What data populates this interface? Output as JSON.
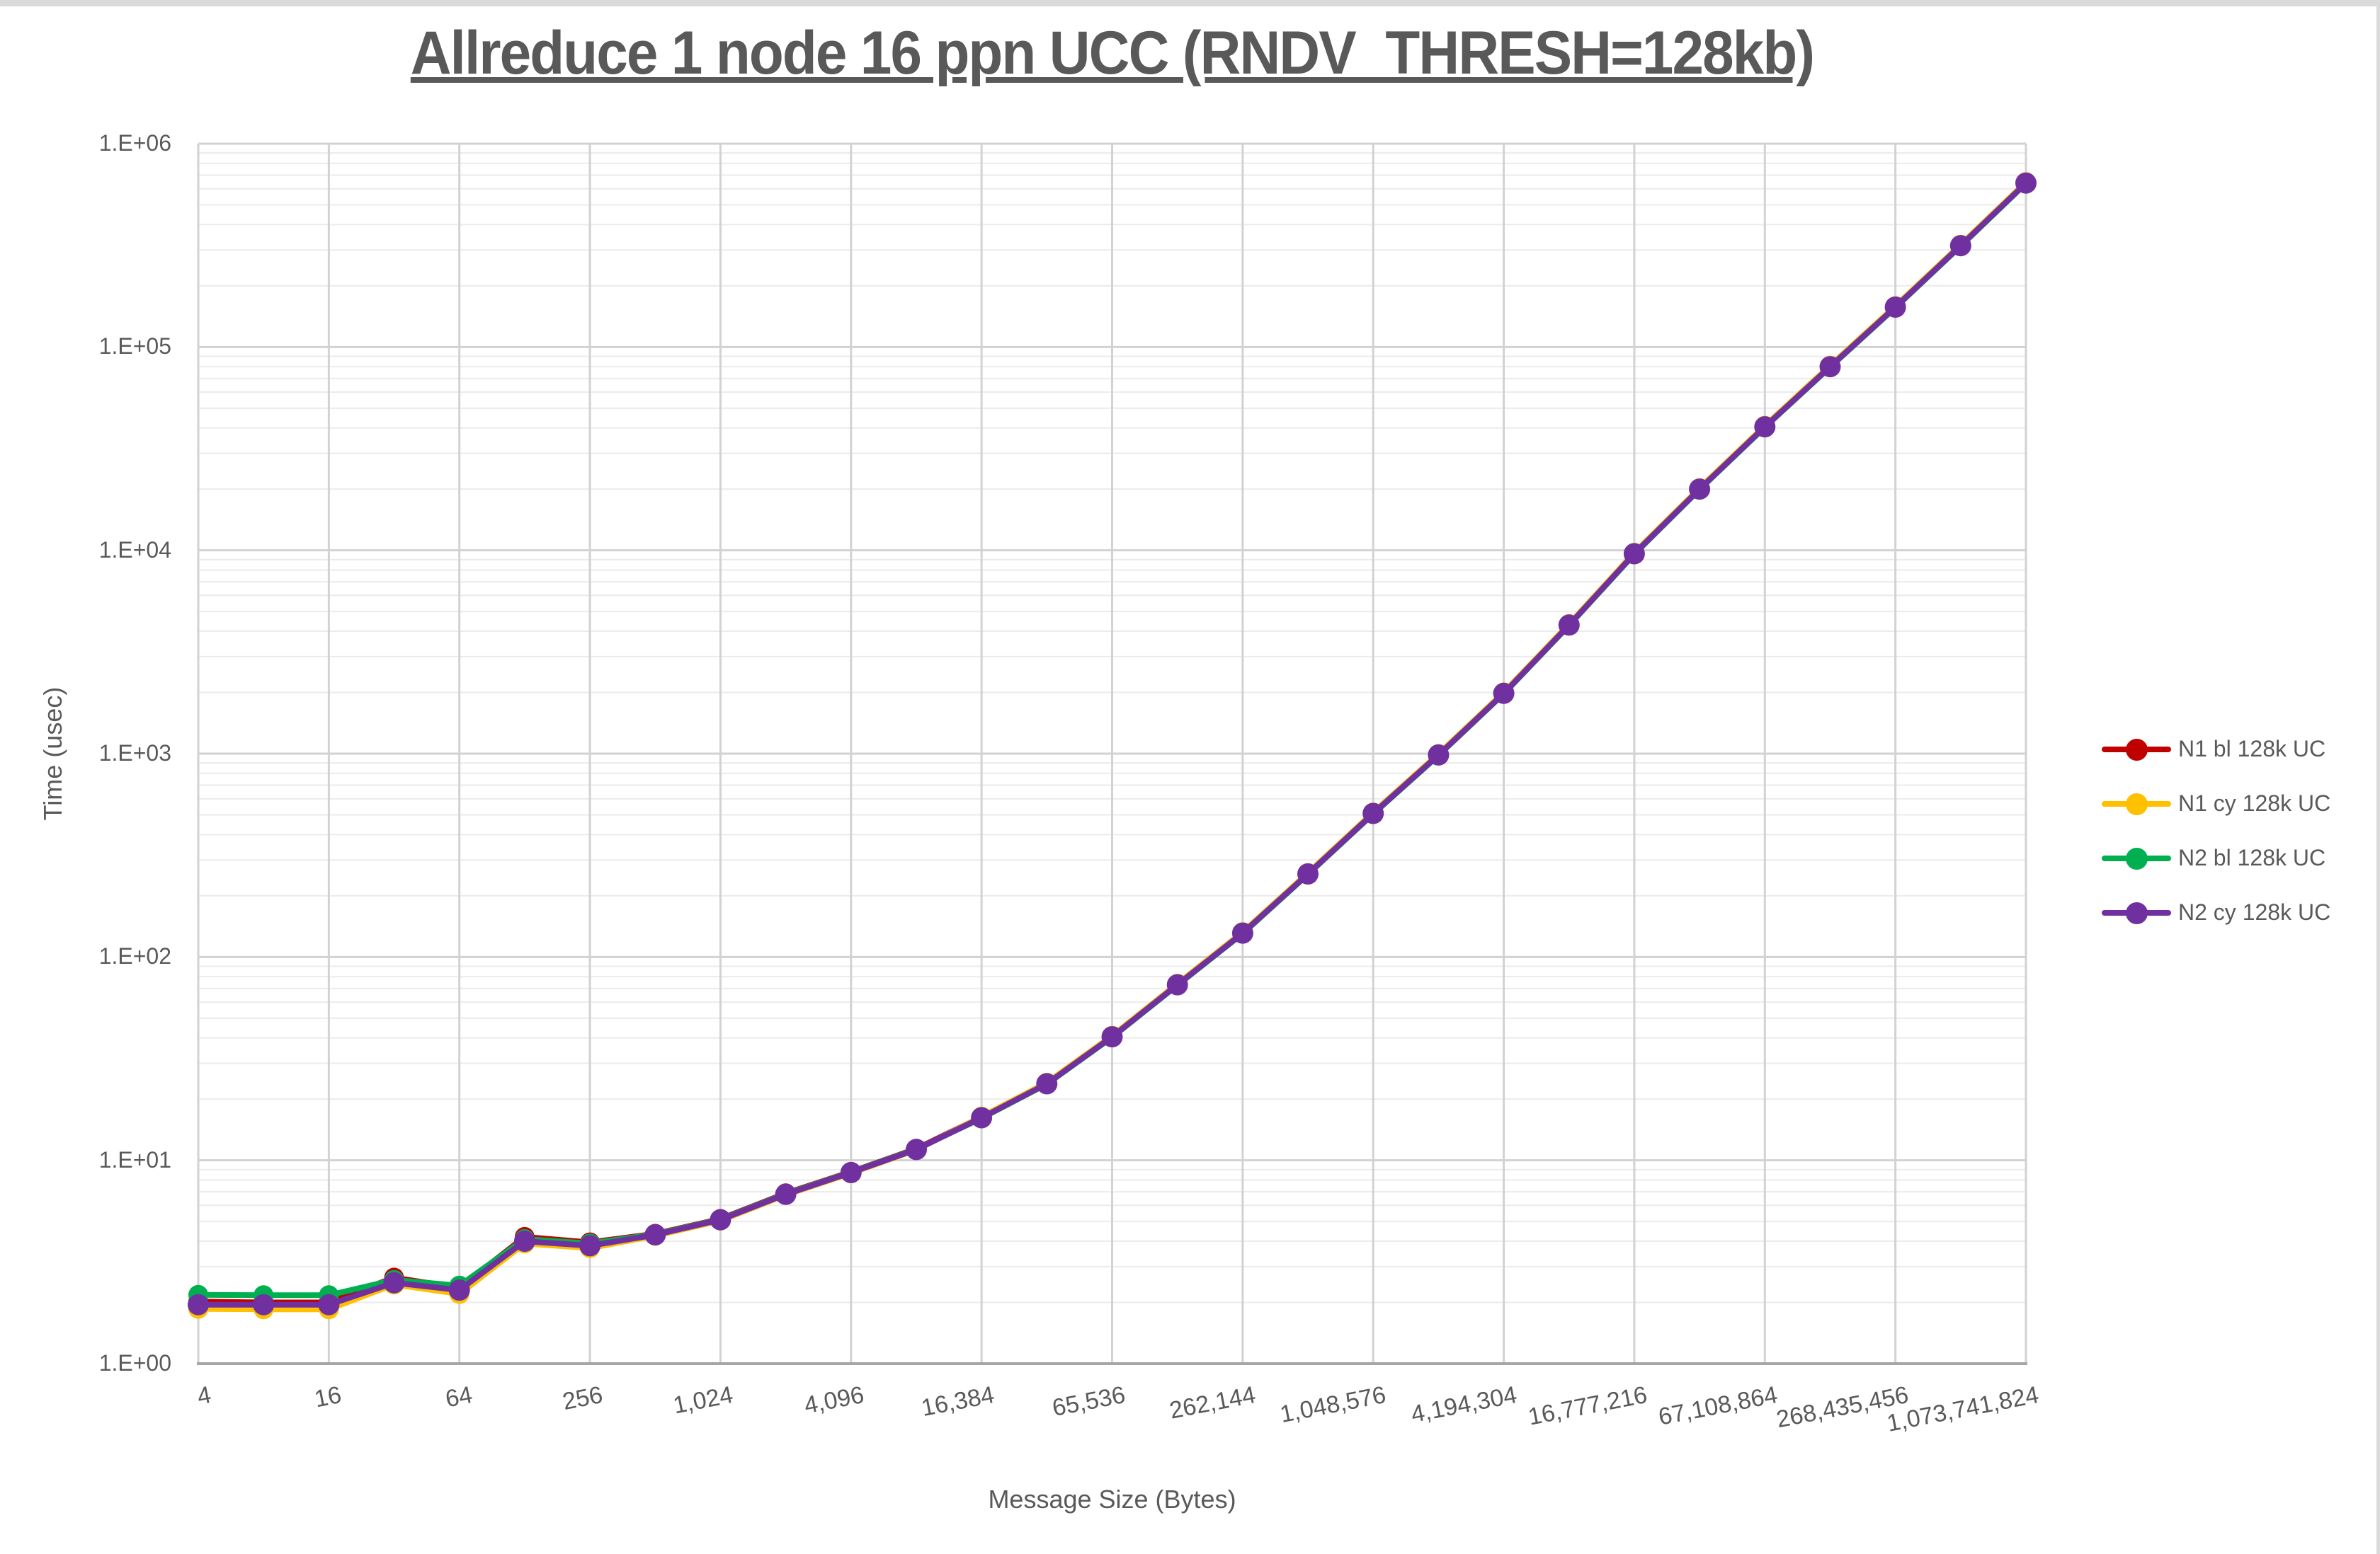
{
  "chart_data": {
    "type": "line",
    "title": "Allreduce 1 node 16 ppn UCC (RNDV_THRESH=128kb)",
    "xlabel": "Message Size (Bytes)",
    "ylabel": "Time (usec)",
    "x_scale": "log2",
    "y_scale": "log10",
    "ylim": [
      1,
      1000000
    ],
    "xlim": [
      4,
      1073741824
    ],
    "grid": {
      "major": true,
      "minor_horizontal": true,
      "minor_vertical": false
    },
    "legend_position": "right",
    "x": [
      4,
      8,
      16,
      32,
      64,
      128,
      256,
      512,
      1024,
      2048,
      4096,
      8192,
      16384,
      32768,
      65536,
      131072,
      262144,
      524288,
      1048576,
      2097152,
      4194304,
      8388608,
      16777216,
      33554432,
      67108864,
      134217728,
      268435456,
      536870912,
      1073741824
    ],
    "x_tick_values": [
      4,
      16,
      64,
      256,
      1024,
      4096,
      16384,
      65536,
      262144,
      1048576,
      4194304,
      16777216,
      67108864,
      268435456,
      1073741824
    ],
    "x_tick_labels": [
      "4",
      "16",
      "64",
      "256",
      "1,024",
      "4,096",
      "16,384",
      "65,536",
      "262,144",
      "1,048,576",
      "4,194,304",
      "16,777,216",
      "67,108,864",
      "268,435,456",
      "1,073,741,824"
    ],
    "y_tick_values": [
      1,
      10,
      100,
      1000,
      10000,
      100000,
      1000000
    ],
    "y_tick_labels": [
      "1.E+00",
      "1.E+01",
      "1.E+02",
      "1.E+03",
      "1.E+04",
      "1.E+05",
      "1.E+06"
    ],
    "series": [
      {
        "name": "N1 bl 128k UC",
        "color": "#C00000",
        "values": [
          2.02,
          2.0,
          2.0,
          2.65,
          2.36,
          4.2,
          3.95,
          4.35,
          5.15,
          6.88,
          8.78,
          11.4,
          16.35,
          23.95,
          40.7,
          73.4,
          131.7,
          257.5,
          511,
          990,
          1990,
          4310,
          9670,
          20100,
          40700,
          80400,
          157800,
          316600,
          643000
        ]
      },
      {
        "name": "N1 cy 128k UC",
        "color": "#FFC000",
        "values": [
          1.86,
          1.85,
          1.85,
          2.45,
          2.2,
          3.9,
          3.7,
          4.25,
          5.05,
          6.75,
          8.65,
          11.25,
          16.4,
          24.1,
          41.0,
          73.9,
          132.6,
          259,
          514,
          997,
          2004,
          4340,
          9740,
          20240,
          41000,
          81000,
          158900,
          318800,
          647700
        ]
      },
      {
        "name": "N2 bl 128k UC",
        "color": "#00B050",
        "values": [
          2.18,
          2.17,
          2.17,
          2.58,
          2.42,
          4.1,
          3.9,
          4.33,
          5.12,
          6.84,
          8.74,
          11.35,
          16.1,
          23.7,
          40.3,
          72.6,
          130.3,
          254.7,
          505,
          980,
          1970,
          4270,
          9570,
          19900,
          40300,
          79600,
          156200,
          313400,
          636800
        ]
      },
      {
        "name": "N2 cy 128k UC",
        "color": "#7030A0",
        "values": [
          1.95,
          1.95,
          1.95,
          2.5,
          2.3,
          4.0,
          3.8,
          4.3,
          5.1,
          6.8,
          8.7,
          11.3,
          16.2,
          23.8,
          40.5,
          73.0,
          131,
          256,
          508,
          985,
          1980,
          4290,
          9620,
          20000,
          40500,
          80000,
          157000,
          315000,
          640000
        ]
      }
    ]
  },
  "colors": {
    "text": "#595959",
    "major_grid": "#D2D2D2",
    "minor_grid": "#EBEBEB",
    "axis_line": "#A6A6A6",
    "background": "#FFFFFF",
    "window_edge": "#DADADA"
  }
}
